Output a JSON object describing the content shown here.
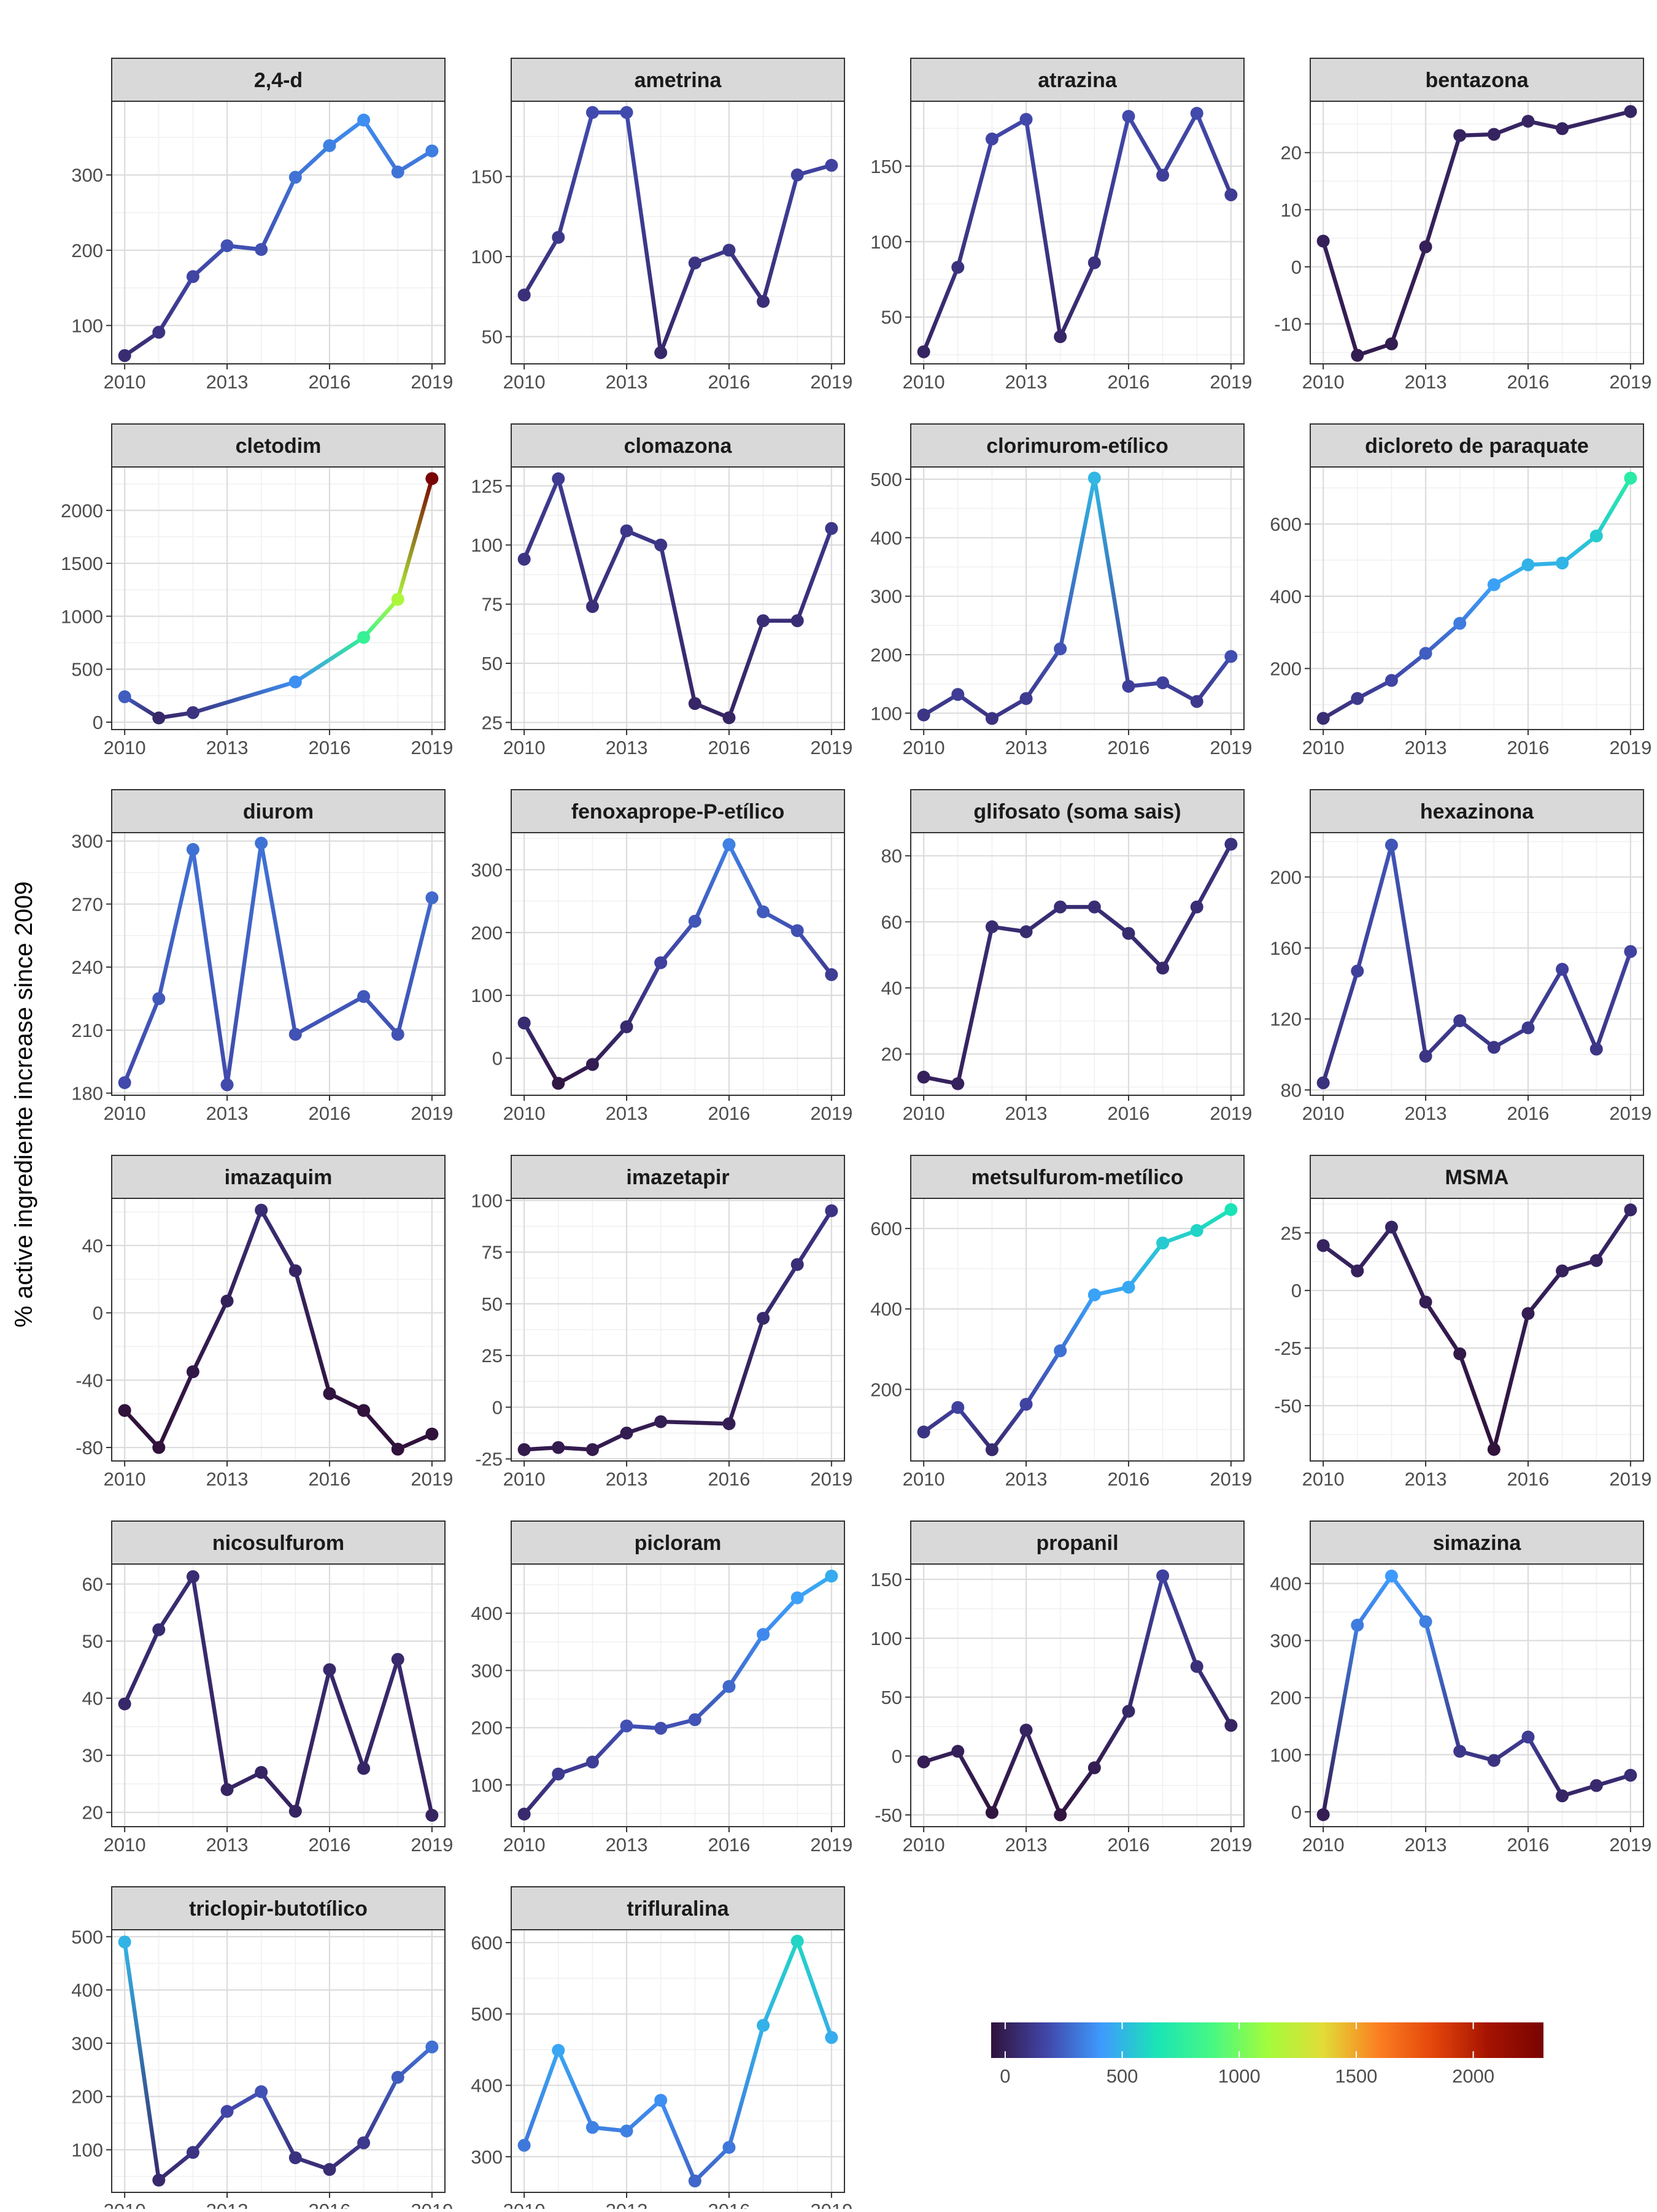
{
  "chart_data": {
    "type": "line",
    "ylabel": "% active ingrediente increase since 2009",
    "colorbar": {
      "min": -60,
      "max": 2300,
      "ticks": [
        0,
        500,
        1000,
        1500,
        2000
      ],
      "colors": [
        "#30123b",
        "#4146a8",
        "#3e9bfe",
        "#1ae4b6",
        "#46f884",
        "#a2fc3c",
        "#e1dd37",
        "#fb8022",
        "#e4460a",
        "#a51301",
        "#7a0403"
      ]
    },
    "panels": [
      {
        "title": "2,4-d",
        "x": [
          2010,
          2011,
          2012,
          2013,
          2014,
          2015,
          2016,
          2017,
          2018,
          2019
        ],
        "y": [
          60,
          91,
          165,
          206,
          201,
          297,
          339,
          373,
          304,
          332
        ],
        "yticks": [
          100,
          200,
          300
        ],
        "ylim": [
          49,
          398
        ]
      },
      {
        "title": "ametrina",
        "x": [
          2010,
          2011,
          2012,
          2013,
          2014,
          2015,
          2016,
          2017,
          2018,
          2019
        ],
        "y": [
          76,
          112,
          190,
          190,
          40,
          96,
          104,
          72,
          151,
          157
        ],
        "yticks": [
          50,
          100,
          150
        ],
        "ylim": [
          33,
          197
        ]
      },
      {
        "title": "atrazina",
        "x": [
          2010,
          2011,
          2012,
          2013,
          2014,
          2015,
          2016,
          2017,
          2018,
          2019
        ],
        "y": [
          27,
          83,
          168,
          181,
          37,
          86,
          183,
          144,
          185,
          131
        ],
        "yticks": [
          50,
          100,
          150
        ],
        "ylim": [
          19,
          193
        ]
      },
      {
        "title": "bentazona",
        "x": [
          2010,
          2011,
          2012,
          2013,
          2014,
          2015,
          2016,
          2017,
          2019
        ],
        "y": [
          4.5,
          -15.5,
          -13.5,
          3.5,
          23,
          23.2,
          25.5,
          24.2,
          27.2
        ],
        "yticks": [
          -10,
          0,
          10,
          20
        ],
        "ylim": [
          -17,
          29
        ]
      },
      {
        "title": "cletodim",
        "x": [
          2010,
          2011,
          2012,
          2015,
          2017,
          2018,
          2019
        ],
        "y": [
          240,
          40,
          90,
          380,
          800,
          1160,
          2300
        ],
        "yticks": [
          0,
          500,
          1000,
          1500,
          2000
        ],
        "ylim": [
          -70,
          2410
        ]
      },
      {
        "title": "clomazona",
        "x": [
          2010,
          2011,
          2012,
          2013,
          2014,
          2015,
          2016,
          2017,
          2018,
          2019
        ],
        "y": [
          94,
          128,
          74,
          106,
          100,
          33,
          27,
          68,
          68,
          107
        ],
        "yticks": [
          25,
          50,
          75,
          100,
          125
        ],
        "ylim": [
          22,
          133
        ]
      },
      {
        "title": "clorimurom-etílico",
        "x": [
          2010,
          2011,
          2012,
          2013,
          2014,
          2015,
          2016,
          2017,
          2018,
          2019
        ],
        "y": [
          97,
          132,
          91,
          125,
          210,
          502,
          146,
          152,
          120,
          197
        ],
        "yticks": [
          100,
          200,
          300,
          400,
          500
        ],
        "ylim": [
          72,
          521
        ]
      },
      {
        "title": "dicloreto de paraquate",
        "x": [
          2010,
          2011,
          2012,
          2013,
          2014,
          2015,
          2016,
          2017,
          2018,
          2019
        ],
        "y": [
          62,
          117,
          167,
          242,
          325,
          432,
          487,
          492,
          567,
          727
        ],
        "yticks": [
          200,
          400,
          600
        ],
        "ylim": [
          31,
          758
        ]
      },
      {
        "title": "diurom",
        "x": [
          2010,
          2011,
          2012,
          2013,
          2014,
          2015,
          2017,
          2018,
          2019
        ],
        "y": [
          185,
          225,
          296,
          184,
          299,
          208,
          226,
          208,
          273
        ],
        "yticks": [
          180,
          210,
          240,
          270,
          300
        ],
        "ylim": [
          179,
          304
        ]
      },
      {
        "title": "fenoxaprope-P-etílico",
        "x": [
          2010,
          2011,
          2012,
          2013,
          2014,
          2015,
          2016,
          2017,
          2018,
          2019
        ],
        "y": [
          56,
          -40,
          -10,
          50,
          152,
          218,
          340,
          233,
          203,
          133
        ],
        "yticks": [
          0,
          100,
          200,
          300
        ],
        "ylim": [
          -59,
          359
        ]
      },
      {
        "title": "glifosato (soma sais)",
        "x": [
          2010,
          2011,
          2012,
          2013,
          2014,
          2015,
          2016,
          2017,
          2018,
          2019
        ],
        "y": [
          13,
          11,
          58.5,
          57,
          64.5,
          64.5,
          56.5,
          46,
          64.5,
          83.5
        ],
        "yticks": [
          20,
          40,
          60,
          80
        ],
        "ylim": [
          7.5,
          87
        ]
      },
      {
        "title": "hexazinona",
        "x": [
          2010,
          2011,
          2012,
          2013,
          2014,
          2015,
          2016,
          2017,
          2018,
          2019
        ],
        "y": [
          84,
          147,
          218,
          99,
          119,
          104,
          115,
          148,
          103,
          158
        ],
        "yticks": [
          80,
          120,
          160,
          200
        ],
        "ylim": [
          77,
          225
        ]
      },
      {
        "title": "imazaquim",
        "x": [
          2010,
          2011,
          2012,
          2013,
          2014,
          2015,
          2016,
          2017,
          2018,
          2019
        ],
        "y": [
          -58,
          -80,
          -35,
          7,
          61,
          25,
          -48,
          -58,
          -81,
          -72
        ],
        "yticks": [
          -80,
          -40,
          0,
          40
        ],
        "ylim": [
          -88,
          68
        ]
      },
      {
        "title": "imazetapir",
        "x": [
          2010,
          2011,
          2012,
          2013,
          2014,
          2016,
          2017,
          2018,
          2019
        ],
        "y": [
          -20.5,
          -19.5,
          -20.5,
          -12.5,
          -7,
          -8,
          43,
          69,
          95
        ],
        "yticks": [
          -25,
          0,
          25,
          50,
          75,
          100
        ],
        "ylim": [
          -26,
          101
        ]
      },
      {
        "title": "metsulfurom-metílico",
        "x": [
          2010,
          2011,
          2012,
          2013,
          2014,
          2015,
          2016,
          2017,
          2018,
          2019
        ],
        "y": [
          94,
          155,
          50,
          163,
          296,
          435,
          454,
          564,
          595,
          647
        ],
        "yticks": [
          200,
          400,
          600
        ],
        "ylim": [
          22,
          675
        ]
      },
      {
        "title": "MSMA",
        "x": [
          2010,
          2011,
          2012,
          2013,
          2014,
          2015,
          2016,
          2017,
          2018,
          2019
        ],
        "y": [
          19.5,
          8.5,
          27.5,
          -5,
          -27.5,
          -69,
          -10,
          8.5,
          13,
          35
        ],
        "yticks": [
          -50,
          -25,
          0,
          25
        ],
        "ylim": [
          -74,
          40
        ]
      },
      {
        "title": "nicosulfurom",
        "x": [
          2010,
          2011,
          2012,
          2013,
          2014,
          2015,
          2016,
          2017,
          2018,
          2019
        ],
        "y": [
          39,
          52,
          61.3,
          24,
          27,
          20.2,
          45,
          27.7,
          46.8,
          19.5
        ],
        "yticks": [
          20,
          30,
          40,
          50,
          60
        ],
        "ylim": [
          17.5,
          63.5
        ]
      },
      {
        "title": "picloram",
        "x": [
          2010,
          2011,
          2012,
          2013,
          2014,
          2015,
          2016,
          2017,
          2018,
          2019
        ],
        "y": [
          49,
          119,
          140,
          203,
          199,
          214,
          272,
          363,
          427,
          465
        ],
        "yticks": [
          100,
          200,
          300,
          400
        ],
        "ylim": [
          27,
          486
        ]
      },
      {
        "title": "propanil",
        "x": [
          2010,
          2011,
          2012,
          2013,
          2014,
          2015,
          2016,
          2017,
          2018,
          2019
        ],
        "y": [
          -5,
          4,
          -48,
          22,
          -50,
          -10,
          38,
          153,
          76,
          26
        ],
        "yticks": [
          -50,
          0,
          50,
          100,
          150
        ],
        "ylim": [
          -60,
          163
        ]
      },
      {
        "title": "simazina",
        "x": [
          2010,
          2011,
          2012,
          2013,
          2014,
          2015,
          2016,
          2017,
          2018,
          2019
        ],
        "y": [
          -5,
          327,
          413,
          333,
          106,
          90,
          131,
          28,
          46,
          64
        ],
        "yticks": [
          0,
          100,
          200,
          300,
          400
        ],
        "ylim": [
          -26,
          434
        ]
      },
      {
        "title": "triclopir-butotílico",
        "x": [
          2010,
          2011,
          2012,
          2013,
          2014,
          2015,
          2016,
          2017,
          2018,
          2019
        ],
        "y": [
          490,
          43,
          95,
          172,
          209,
          85,
          63,
          113,
          236,
          293
        ],
        "yticks": [
          100,
          200,
          300,
          400,
          500
        ],
        "ylim": [
          20,
          513
        ]
      },
      {
        "title": "trifluralina",
        "x": [
          2010,
          2011,
          2012,
          2013,
          2014,
          2015,
          2016,
          2017,
          2018,
          2019
        ],
        "y": [
          316,
          449,
          341,
          336,
          379,
          266,
          313,
          484,
          602,
          467
        ],
        "yticks": [
          300,
          400,
          500,
          600
        ],
        "ylim": [
          250,
          618
        ]
      }
    ]
  }
}
